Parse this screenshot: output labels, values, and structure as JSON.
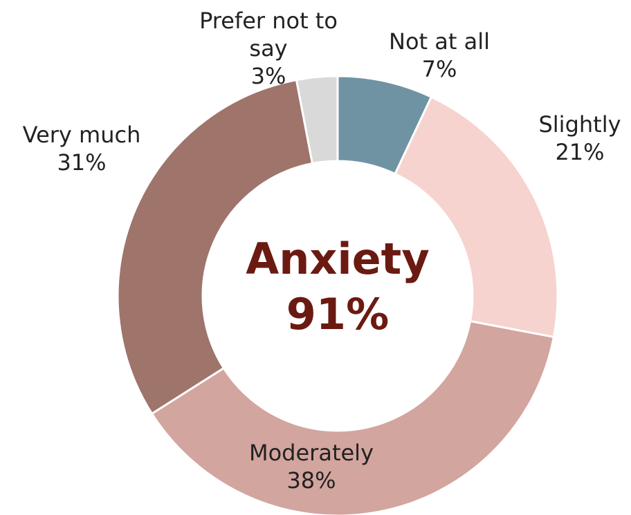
{
  "chart_data": {
    "type": "donut",
    "categories": [
      "Not at all",
      "Slightly",
      "Moderately",
      "Very much",
      "Prefer not to say"
    ],
    "values": [
      7,
      21,
      38,
      31,
      3
    ],
    "value_labels": [
      "7%",
      "21%",
      "38%",
      "31%",
      "3%"
    ],
    "colors": [
      "#7093a3",
      "#f6d3ce",
      "#d3a59f",
      "#9e746b",
      "#d9d9d9"
    ],
    "center_title": "Anxiety",
    "center_subtitle": "91%"
  }
}
